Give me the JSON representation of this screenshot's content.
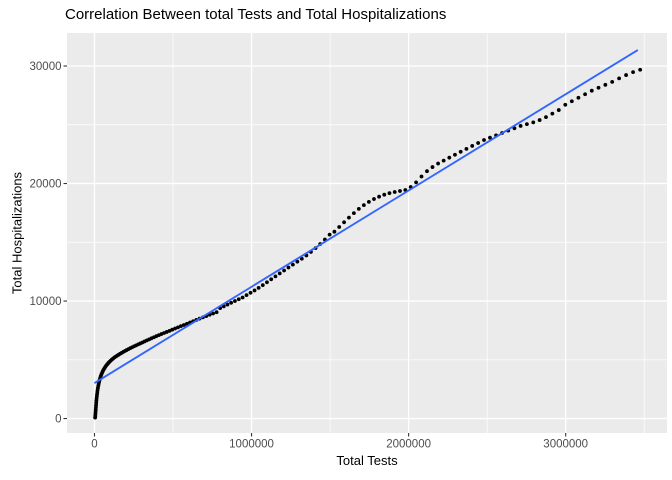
{
  "chart": {
    "title": "Correlation Between total Tests and Total Hospitalizations",
    "xlabel": "Total Tests",
    "ylabel": "Total Hospitalizations"
  },
  "chart_data": {
    "type": "scatter",
    "title": "Correlation Between total Tests and Total Hospitalizations",
    "xlabel": "Total Tests",
    "ylabel": "Total Hospitalizations",
    "xlim": [
      -175000,
      3645000
    ],
    "ylim": [
      -1230,
      32810
    ],
    "x_ticks": {
      "values": [
        0,
        1000000,
        2000000,
        3000000
      ],
      "labels": [
        "0",
        "1000000",
        "2000000",
        "3000000"
      ]
    },
    "y_ticks": {
      "values": [
        0,
        10000,
        20000,
        30000
      ],
      "labels": [
        "0",
        "10000",
        "20000",
        "30000"
      ]
    },
    "x_minor": [
      500000,
      1500000,
      2500000,
      3500000
    ],
    "y_minor": [
      5000,
      15000,
      25000
    ],
    "grid": true,
    "legend": "none",
    "panel_bg": "#EBEBEB",
    "grid_color": "#FFFFFF",
    "tick_color": "#333333",
    "tick_label_color": "#4D4D4D",
    "series": [
      {
        "name": "observations",
        "type": "points",
        "color": "#000000",
        "points": [
          [
            4000,
            80
          ],
          [
            5000,
            230
          ],
          [
            6000,
            400
          ],
          [
            7000,
            580
          ],
          [
            8000,
            760
          ],
          [
            9000,
            950
          ],
          [
            10000,
            1140
          ],
          [
            11000,
            1330
          ],
          [
            12000,
            1520
          ],
          [
            13500,
            1710
          ],
          [
            15000,
            1900
          ],
          [
            16500,
            2080
          ],
          [
            18000,
            2260
          ],
          [
            20000,
            2440
          ],
          [
            22000,
            2620
          ],
          [
            24500,
            2800
          ],
          [
            27000,
            2970
          ],
          [
            30000,
            3140
          ],
          [
            33000,
            3300
          ],
          [
            36500,
            3460
          ],
          [
            40000,
            3610
          ],
          [
            44000,
            3760
          ],
          [
            48500,
            3900
          ],
          [
            53000,
            4030
          ],
          [
            58000,
            4160
          ],
          [
            63500,
            4280
          ],
          [
            69000,
            4400
          ],
          [
            75000,
            4510
          ],
          [
            81500,
            4620
          ],
          [
            88000,
            4720
          ],
          [
            95000,
            4820
          ],
          [
            102500,
            4920
          ],
          [
            110000,
            5010
          ],
          [
            118000,
            5100
          ],
          [
            126500,
            5190
          ],
          [
            135000,
            5270
          ],
          [
            144000,
            5350
          ],
          [
            153500,
            5430
          ],
          [
            163000,
            5510
          ],
          [
            173000,
            5590
          ],
          [
            183500,
            5670
          ],
          [
            194000,
            5750
          ],
          [
            205000,
            5830
          ],
          [
            216500,
            5910
          ],
          [
            228000,
            5990
          ],
          [
            240000,
            6070
          ],
          [
            252500,
            6150
          ],
          [
            265000,
            6230
          ],
          [
            278000,
            6310
          ],
          [
            291500,
            6390
          ],
          [
            305000,
            6470
          ],
          [
            319000,
            6560
          ],
          [
            333500,
            6650
          ],
          [
            348000,
            6740
          ],
          [
            363000,
            6830
          ],
          [
            378500,
            6920
          ],
          [
            394000,
            7010
          ],
          [
            410000,
            7100
          ],
          [
            426500,
            7190
          ],
          [
            443000,
            7280
          ],
          [
            460000,
            7370
          ],
          [
            477500,
            7460
          ],
          [
            495000,
            7560
          ],
          [
            513000,
            7660
          ],
          [
            531500,
            7760
          ],
          [
            550000,
            7860
          ],
          [
            569000,
            7960
          ],
          [
            588500,
            8060
          ],
          [
            608000,
            8170
          ],
          [
            628000,
            8280
          ],
          [
            648500,
            8390
          ],
          [
            669000,
            8500
          ],
          [
            690000,
            8610
          ],
          [
            711500,
            8720
          ],
          [
            733000,
            8830
          ],
          [
            755000,
            8940
          ],
          [
            777500,
            9050
          ],
          [
            800000,
            9400
          ],
          [
            823000,
            9550
          ],
          [
            846500,
            9700
          ],
          [
            870000,
            9850
          ],
          [
            894000,
            10000
          ],
          [
            918500,
            10150
          ],
          [
            943000,
            10300
          ],
          [
            968000,
            10500
          ],
          [
            993500,
            10700
          ],
          [
            1019000,
            10900
          ],
          [
            1045000,
            11120
          ],
          [
            1071500,
            11350
          ],
          [
            1098000,
            11600
          ],
          [
            1125000,
            11850
          ],
          [
            1152000,
            12100
          ],
          [
            1179500,
            12350
          ],
          [
            1207000,
            12600
          ],
          [
            1235000,
            12850
          ],
          [
            1263000,
            13100
          ],
          [
            1291500,
            13350
          ],
          [
            1320000,
            13600
          ],
          [
            1349000,
            13880
          ],
          [
            1378000,
            14180
          ],
          [
            1407500,
            14500
          ],
          [
            1437000,
            14850
          ],
          [
            1467000,
            15230
          ],
          [
            1497000,
            15650
          ],
          [
            1527500,
            15900
          ],
          [
            1558000,
            16300
          ],
          [
            1589000,
            16700
          ],
          [
            1620000,
            17100
          ],
          [
            1651500,
            17480
          ],
          [
            1683000,
            17840
          ],
          [
            1715000,
            18160
          ],
          [
            1747000,
            18440
          ],
          [
            1779500,
            18680
          ],
          [
            1812000,
            18880
          ],
          [
            1845000,
            19050
          ],
          [
            1878000,
            19180
          ],
          [
            1911500,
            19280
          ],
          [
            1945000,
            19360
          ],
          [
            1979000,
            19450
          ],
          [
            2013000,
            19700
          ],
          [
            2047500,
            20100
          ],
          [
            2082000,
            20600
          ],
          [
            2117000,
            21050
          ],
          [
            2152000,
            21400
          ],
          [
            2187500,
            21700
          ],
          [
            2223000,
            21950
          ],
          [
            2259000,
            22200
          ],
          [
            2295000,
            22450
          ],
          [
            2331500,
            22700
          ],
          [
            2368000,
            22950
          ],
          [
            2405000,
            23200
          ],
          [
            2442500,
            23450
          ],
          [
            2480000,
            23700
          ],
          [
            2518000,
            23900
          ],
          [
            2556500,
            24100
          ],
          [
            2595000,
            24300
          ],
          [
            2634000,
            24500
          ],
          [
            2673500,
            24700
          ],
          [
            2713000,
            24900
          ],
          [
            2753000,
            25050
          ],
          [
            2793500,
            25200
          ],
          [
            2834000,
            25400
          ],
          [
            2874500,
            25650
          ],
          [
            2915000,
            25950
          ],
          [
            2956000,
            26250
          ],
          [
            2997500,
            26700
          ],
          [
            3039000,
            27000
          ],
          [
            3081000,
            27300
          ],
          [
            3123500,
            27600
          ],
          [
            3166000,
            27900
          ],
          [
            3209000,
            28150
          ],
          [
            3252500,
            28400
          ],
          [
            3296000,
            28650
          ],
          [
            3340000,
            28950
          ],
          [
            3384500,
            29230
          ],
          [
            3429000,
            29480
          ],
          [
            3474000,
            29680
          ]
        ]
      },
      {
        "name": "linear-fit",
        "type": "line",
        "color": "#3366FF",
        "points": [
          [
            4000,
            3050
          ],
          [
            3455000,
            31330
          ]
        ]
      }
    ]
  }
}
